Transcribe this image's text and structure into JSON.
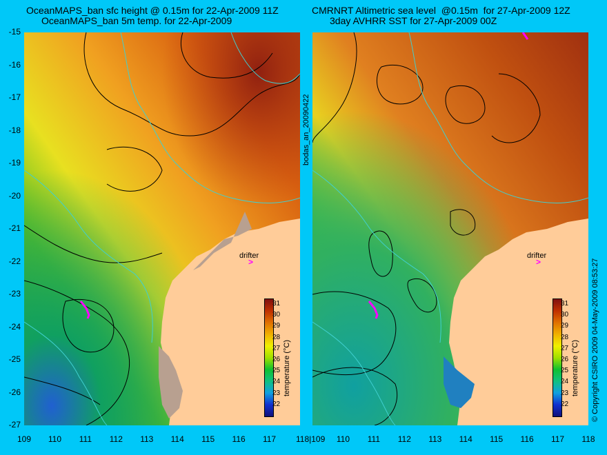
{
  "left_title_line1": "OceanMAPS_ban sfc height @ 0.15m for 22-Apr-2009 11Z",
  "left_title_line2": "OceanMAPS_ban 5m temp. for 22-Apr-2009",
  "right_title_line1": "CMRNRT Altimetric sea level  @0.15m  for 27-Apr-2009 12Z",
  "right_title_line2": "3day AVHRR SST for 27-Apr-2009 00Z",
  "lat_labels": [
    "-15",
    "-16",
    "-17",
    "-18",
    "-19",
    "-20",
    "-21",
    "-22",
    "-23",
    "-24",
    "-25",
    "-26",
    "-27"
  ],
  "lon_labels": [
    "109",
    "110",
    "111",
    "112",
    "113",
    "114",
    "115",
    "116",
    "117",
    "118"
  ],
  "lon_labels_right": [
    "110",
    "111",
    "112",
    "113",
    "114",
    "115",
    "116",
    "117",
    "118"
  ],
  "first_lon_right": "118|109",
  "center_vertical_text": "bodas_an_20090422",
  "right_vertical_text": "© Copyright CSIRO 2009   04-May-2009 08:53:27",
  "drifter_label": "drifter",
  "drifter_symbol": ">",
  "colorbar": {
    "title": "temperature (°C)",
    "ticks": [
      "31",
      "30",
      "29",
      "28",
      "27",
      "26",
      "25",
      "24",
      "23",
      "22"
    ],
    "range": [
      21,
      31.5
    ]
  },
  "colors": {
    "background": "#00c8f8",
    "land": "#ffcc99",
    "contour": "#000000",
    "isobath": "#40d0d0",
    "drifter": "#ff00ff"
  }
}
